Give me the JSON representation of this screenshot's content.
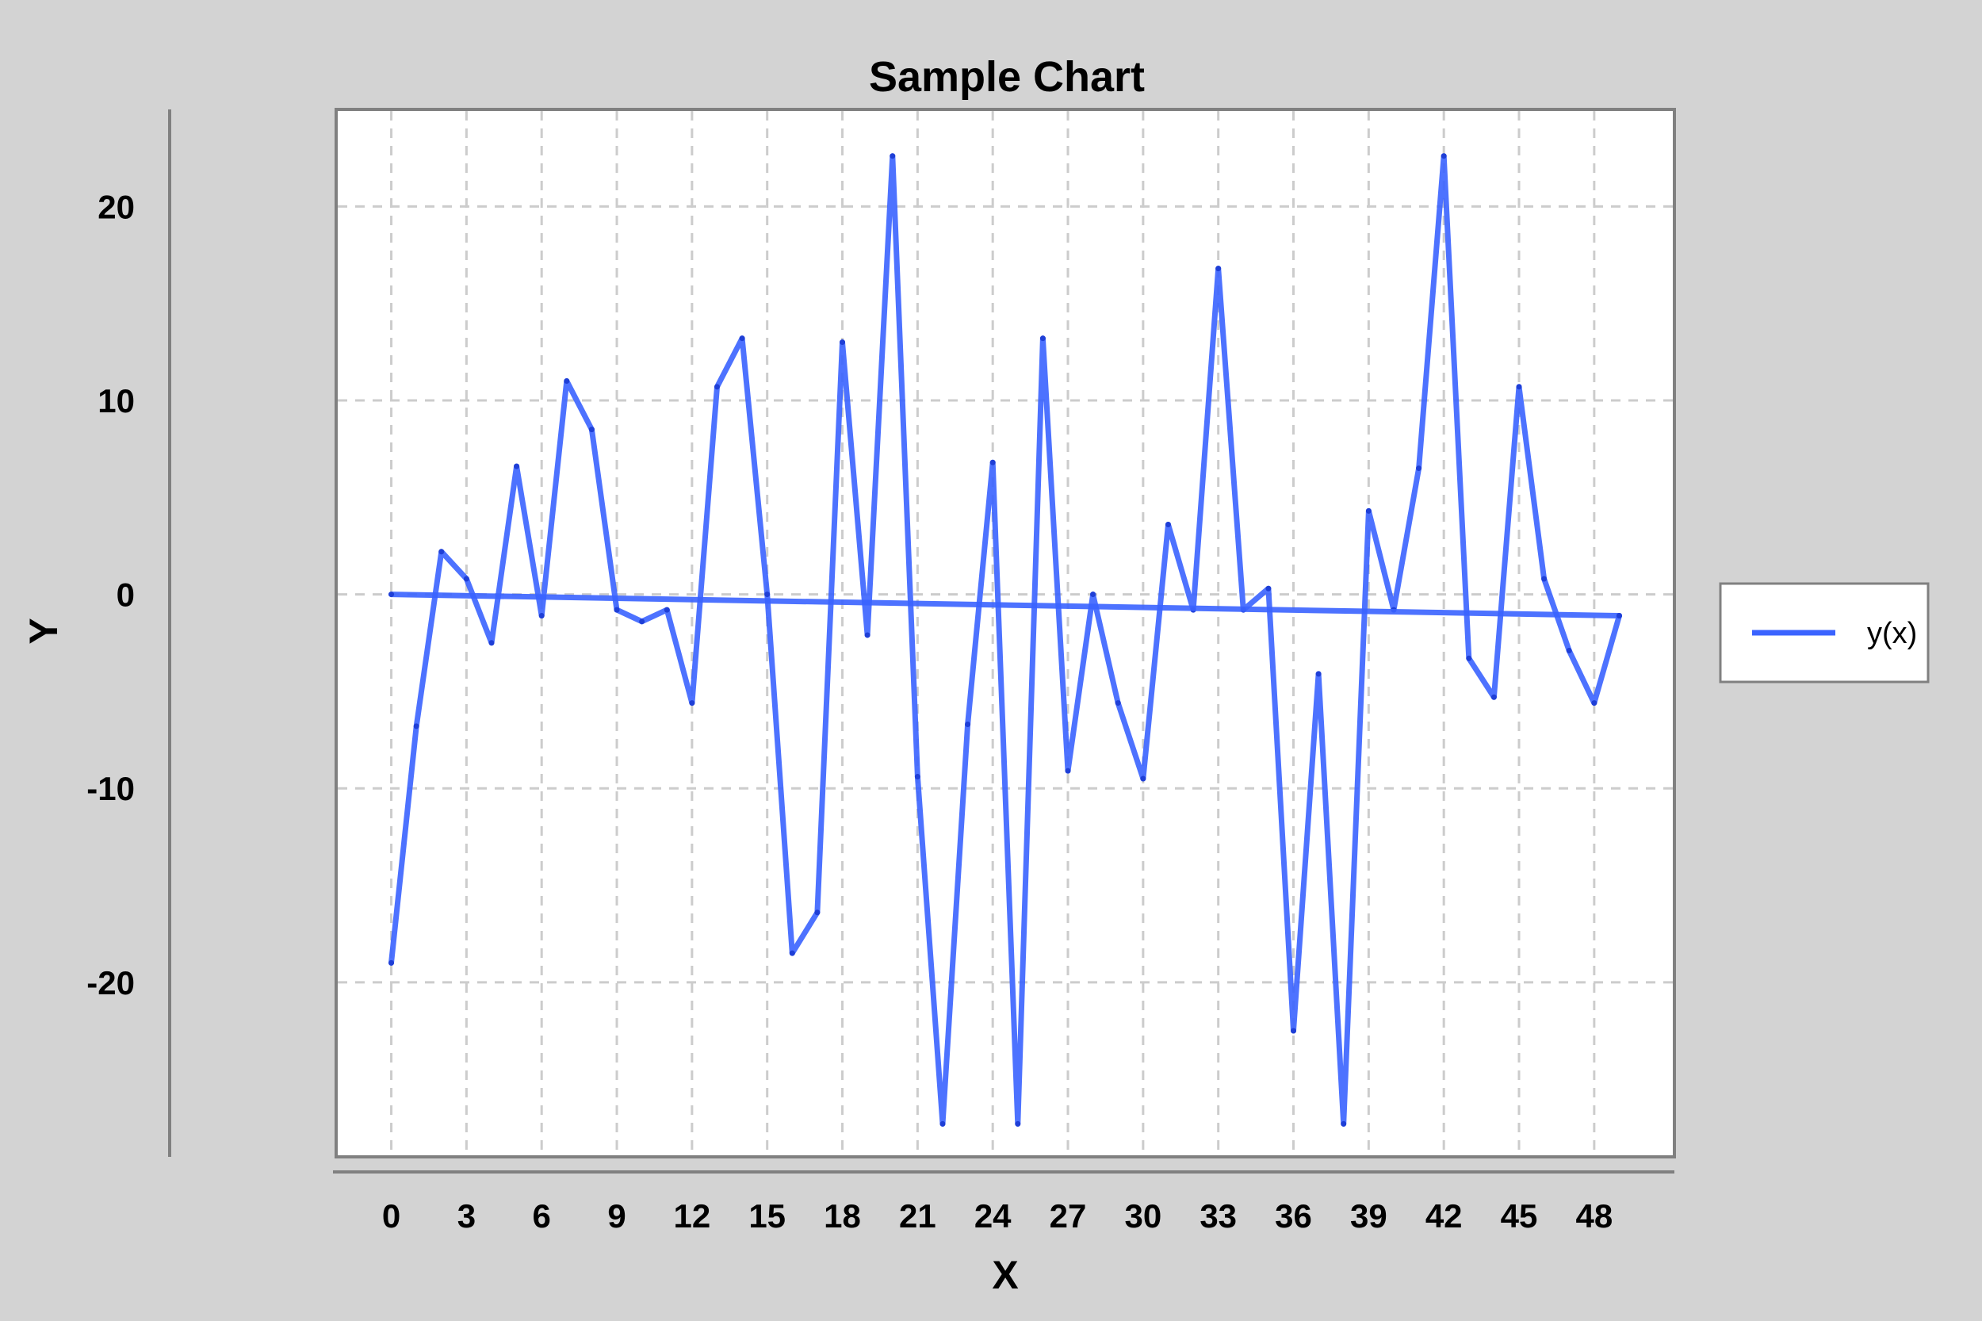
{
  "chart_data": {
    "type": "line",
    "title": "Sample Chart",
    "xlabel": "X",
    "ylabel": "Y",
    "xlim": [
      -2.2,
      51.2
    ],
    "ylim": [
      -29,
      25
    ],
    "x_ticks": [
      0,
      3,
      6,
      9,
      12,
      15,
      18,
      21,
      24,
      27,
      30,
      33,
      36,
      39,
      42,
      45,
      48
    ],
    "y_ticks": [
      -20,
      -10,
      0,
      10,
      20
    ],
    "x_tick_labels": [
      "0",
      "3",
      "6",
      "9",
      "12",
      "15",
      "18",
      "21",
      "24",
      "27",
      "30",
      "33",
      "36",
      "39",
      "42",
      "45",
      "48"
    ],
    "y_tick_labels": [
      "-20",
      "-10",
      "0",
      "10",
      "20"
    ],
    "grid": true,
    "legend_position": "right",
    "colors": {
      "line": "#3a63ff",
      "background": "#d3d3d3",
      "plot_bg": "#ffffff",
      "grid": "#cccccc",
      "frame": "#808080"
    },
    "series": [
      {
        "name": "y(x)",
        "x": [
          0,
          1,
          2,
          3,
          4,
          5,
          6,
          7,
          8,
          9,
          10,
          11,
          12,
          13,
          14,
          15,
          16,
          17,
          18,
          19,
          20,
          21,
          22,
          23,
          24,
          25,
          26,
          27,
          28,
          29,
          30,
          31,
          32,
          33,
          34,
          35,
          36,
          37,
          38,
          39,
          40,
          41,
          42,
          43,
          44,
          45,
          46,
          47,
          48,
          49
        ],
        "y": [
          -19,
          -6.8,
          2.2,
          0.8,
          -2.5,
          6.6,
          -1.1,
          11,
          8.5,
          -0.8,
          -1.4,
          -0.8,
          -5.6,
          10.7,
          13.2,
          0,
          -18.5,
          -16.4,
          13,
          -2.1,
          22.6,
          -9.4,
          -27.3,
          -6.7,
          6.8,
          -27.3,
          13.2,
          -9.1,
          0,
          -5.6,
          -9.5,
          3.6,
          -0.8,
          16.8,
          -0.8,
          0.3,
          -22.5,
          -4.1,
          -27.3,
          4.3,
          -0.8,
          6.5,
          22.6,
          -3.3,
          -5.3,
          10.7,
          0.8,
          -2.9,
          -5.6,
          -1.1
        ]
      },
      {
        "name": "",
        "x": [
          0,
          49
        ],
        "y": [
          0,
          -1.1
        ]
      }
    ]
  },
  "legend": {
    "label": "y(x)"
  }
}
